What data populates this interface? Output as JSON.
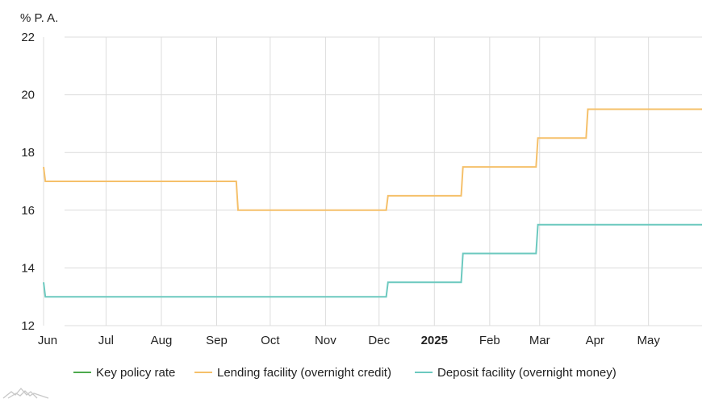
{
  "chart_data": {
    "type": "line",
    "unit_label": "% P. A.",
    "ylim": [
      12,
      22
    ],
    "y_ticks": [
      12,
      14,
      16,
      18,
      20,
      22
    ],
    "x_range": [
      "2024-05-27",
      "2025-05-31"
    ],
    "x_ticks": [
      {
        "date": "2024-06-01",
        "label": "Jun",
        "bold": false
      },
      {
        "date": "2024-07-01",
        "label": "Jul",
        "bold": false
      },
      {
        "date": "2024-08-01",
        "label": "Aug",
        "bold": false
      },
      {
        "date": "2024-09-01",
        "label": "Sep",
        "bold": false
      },
      {
        "date": "2024-10-01",
        "label": "Oct",
        "bold": false
      },
      {
        "date": "2024-11-01",
        "label": "Nov",
        "bold": false
      },
      {
        "date": "2024-12-01",
        "label": "Dec",
        "bold": false
      },
      {
        "date": "2025-01-01",
        "label": "2025",
        "bold": true
      },
      {
        "date": "2025-02-01",
        "label": "Feb",
        "bold": false
      },
      {
        "date": "2025-03-01",
        "label": "Mar",
        "bold": false
      },
      {
        "date": "2025-04-01",
        "label": "Apr",
        "bold": false
      },
      {
        "date": "2025-05-01",
        "label": "May",
        "bold": false
      }
    ],
    "grid": true,
    "legend_position": "bottom",
    "series": [
      {
        "name": "Key policy rate",
        "color": "#4daa4d",
        "points": []
      },
      {
        "name": "Lending facility (overnight credit)",
        "color": "#f5c06a",
        "points": [
          [
            "2024-05-27",
            17.5
          ],
          [
            "2024-05-28",
            17.0
          ],
          [
            "2024-09-12",
            17.0
          ],
          [
            "2024-09-13",
            16.0
          ],
          [
            "2024-12-05",
            16.0
          ],
          [
            "2024-12-06",
            16.5
          ],
          [
            "2025-01-16",
            16.5
          ],
          [
            "2025-01-17",
            17.5
          ],
          [
            "2025-02-27",
            17.5
          ],
          [
            "2025-02-28",
            18.5
          ],
          [
            "2025-03-27",
            18.5
          ],
          [
            "2025-03-28",
            19.5
          ],
          [
            "2025-05-31",
            19.5
          ]
        ]
      },
      {
        "name": "Deposit facility (overnight money)",
        "color": "#6cc9bf",
        "points": [
          [
            "2024-05-27",
            13.5
          ],
          [
            "2024-05-28",
            13.0
          ],
          [
            "2024-12-05",
            13.0
          ],
          [
            "2024-12-06",
            13.5
          ],
          [
            "2025-01-16",
            13.5
          ],
          [
            "2025-01-17",
            14.5
          ],
          [
            "2025-02-27",
            14.5
          ],
          [
            "2025-02-28",
            15.5
          ],
          [
            "2025-05-31",
            15.5
          ]
        ]
      }
    ]
  }
}
